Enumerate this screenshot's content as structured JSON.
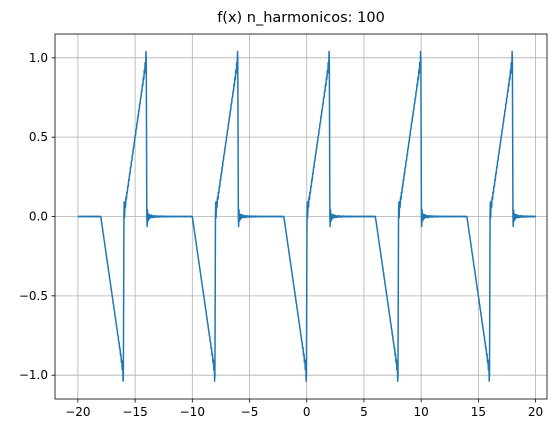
{
  "chart_data": {
    "type": "line",
    "title": "f(x) n_harmonicos: 100",
    "xlabel": "",
    "ylabel": "",
    "xlim": [
      -22,
      21
    ],
    "ylim": [
      -1.15,
      1.15
    ],
    "xticks": [
      -20,
      -15,
      -10,
      -5,
      0,
      5,
      10,
      15,
      20
    ],
    "xtick_labels": [
      "−20",
      "−15",
      "−10",
      "−5",
      "0",
      "5",
      "10",
      "15",
      "20"
    ],
    "yticks": [
      -1.0,
      -0.5,
      0.0,
      0.5,
      1.0
    ],
    "ytick_labels": [
      "−1.0",
      "−0.5",
      "0.0",
      "0.5",
      "1.0"
    ],
    "grid": true,
    "series": [
      {
        "color": "#1f77b4",
        "description": "Fourier partial sum of a sawtooth-like periodic signal (period 8) with Gibbs ringing at the discontinuities",
        "period": 8,
        "n_harmonics": 100
      }
    ]
  }
}
